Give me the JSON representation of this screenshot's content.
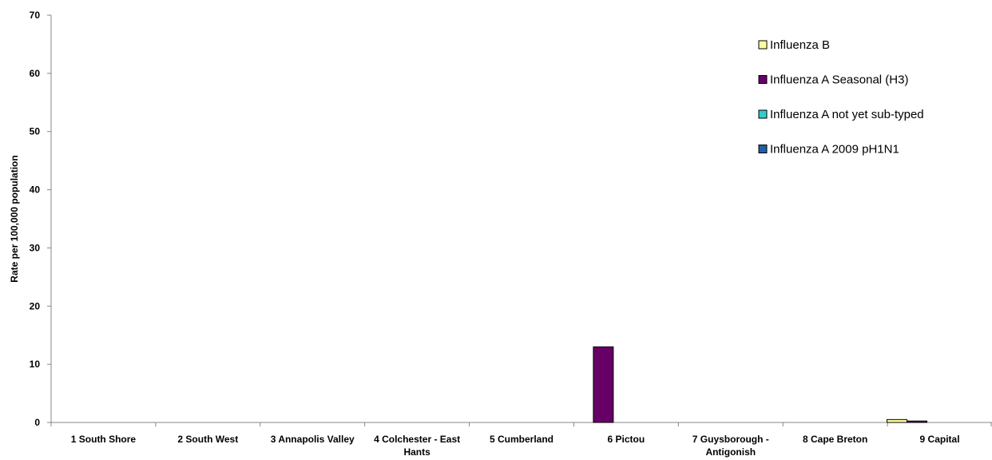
{
  "chart_data": {
    "type": "bar",
    "categories": [
      [
        "1 South Shore"
      ],
      [
        "2 South West"
      ],
      [
        "3 Annapolis Valley"
      ],
      [
        "4 Colchester - East",
        "Hants"
      ],
      [
        "5 Cumberland"
      ],
      [
        "6 Pictou"
      ],
      [
        "7 Guysborough -",
        "Antigonish"
      ],
      [
        "8 Cape Breton"
      ],
      [
        "9 Capital"
      ]
    ],
    "series": [
      {
        "name": "Influenza B",
        "color": "#FFFF99",
        "values": [
          0,
          0,
          0,
          0,
          0,
          0,
          0,
          0,
          0.5
        ]
      },
      {
        "name": "Influenza A Seasonal (H3)",
        "color": "#660066",
        "values": [
          0,
          0,
          0,
          0,
          0,
          13,
          0,
          0,
          0.25
        ]
      },
      {
        "name": "Influenza A not yet sub-typed",
        "color": "#33CCCC",
        "values": [
          0,
          0,
          0,
          0,
          0,
          0,
          0,
          0,
          0
        ]
      },
      {
        "name": "Influenza A 2009 pH1N1",
        "color": "#1F5FA6",
        "values": [
          0,
          0,
          0,
          0,
          0,
          0,
          0,
          0,
          0
        ]
      }
    ],
    "title": "",
    "xlabel": "",
    "ylabel": "Rate per 100,000 population",
    "ylim": [
      0,
      70
    ],
    "yticks": [
      0,
      10,
      20,
      30,
      40,
      50,
      60,
      70
    ],
    "grid": false,
    "legend_position": "top-right"
  }
}
